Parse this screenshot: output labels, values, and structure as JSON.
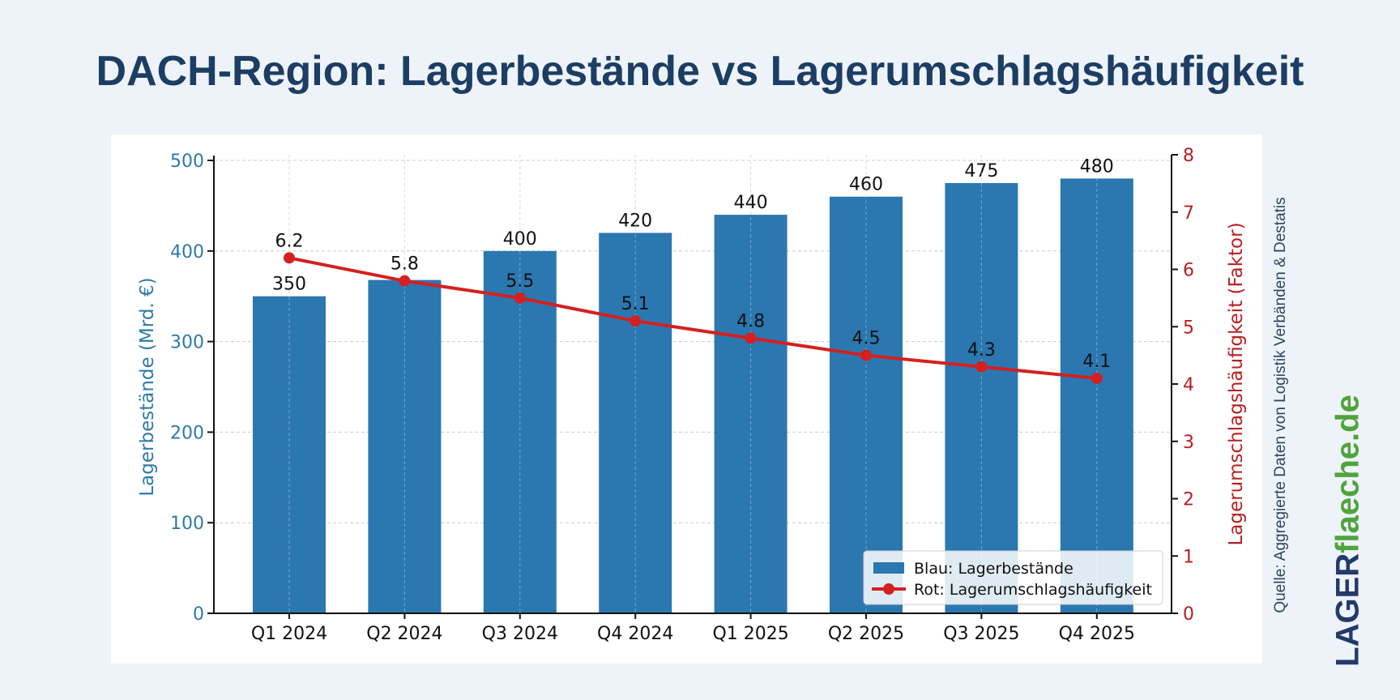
{
  "title": "DACH-Region: Lagerbestände vs Lagerumschlagshäufigkeit",
  "source": "Quelle: Aggregierte Daten von Logistik Verbänden & Destatis",
  "logo": {
    "part1": "LAGER",
    "part2": "flaeche.de"
  },
  "chart_data": {
    "type": "bar+line",
    "categories": [
      "Q1 2024",
      "Q2 2024",
      "Q3 2024",
      "Q4 2024",
      "Q1 2025",
      "Q2 2025",
      "Q3 2025",
      "Q4 2025"
    ],
    "series": [
      {
        "name": "Blau: Lagerbestände",
        "type": "bar",
        "axis": "left",
        "color": "#2b77b0",
        "values": [
          350,
          368,
          400,
          420,
          440,
          460,
          475,
          480
        ],
        "labels": [
          "350",
          "",
          "400",
          "420",
          "440",
          "460",
          "475",
          "480"
        ]
      },
      {
        "name": "Rot: Lagerumschlagshäufigkeit",
        "type": "line",
        "axis": "right",
        "color": "#d42020",
        "values": [
          6.2,
          5.8,
          5.5,
          5.1,
          4.8,
          4.5,
          4.3,
          4.1
        ],
        "labels": [
          "6.2",
          "5.8",
          "5.5",
          "5.1",
          "4.8",
          "4.5",
          "4.3",
          "4.1"
        ]
      }
    ],
    "ylabel_left": "Lagerbestände (Mrd. €)",
    "ylim_left": [
      0,
      500
    ],
    "yticks_left": [
      0,
      100,
      200,
      300,
      400,
      500
    ],
    "left_color": "#2e7aa8",
    "ylabel_right": "Lagerumschlagshäufigkeit (Faktor)",
    "ylim_right": [
      0,
      8
    ],
    "yticks_right": [
      0,
      1,
      2,
      3,
      4,
      5,
      6,
      7,
      8
    ],
    "right_color": "#b82020",
    "grid": true,
    "legend": "bottom-right"
  }
}
